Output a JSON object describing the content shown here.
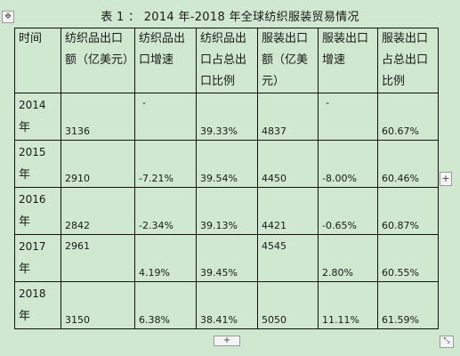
{
  "title": "表 1 ： 2014 年-2018 年全球纺织服装贸易情况",
  "headers": [
    "时间",
    "纺织品出口额（亿美元）",
    "纺织品出口增速",
    "纺织品出口占总出口比例",
    "服装出口额（亿美元）",
    "服装出口增速",
    "服装出口占总出口比例"
  ],
  "rows": [
    {
      "year": "2014",
      "year_suffix": "年",
      "tex_export": "3136",
      "tex_growth": "-",
      "tex_share": "39.33%",
      "app_export": "4837",
      "app_growth": "-",
      "app_share": "60.67%"
    },
    {
      "year": "2015",
      "year_suffix": "年",
      "tex_export": "2910",
      "tex_growth": "-7.21%",
      "tex_share": "39.54%",
      "app_export": "4450",
      "app_growth": "-8.00%",
      "app_share": "60.46%"
    },
    {
      "year": "2016",
      "year_suffix": "年",
      "tex_export": "2842",
      "tex_growth": "-2.34%",
      "tex_share": "39.13%",
      "app_export": "4421",
      "app_growth": "-0.65%",
      "app_share": "60.87%"
    },
    {
      "year": "2017",
      "year_suffix": "年",
      "tex_export": "2961",
      "tex_growth": "4.19%",
      "tex_share": "39.45%",
      "app_export": "4545",
      "app_growth": "2.80%",
      "app_share": "60.55%"
    },
    {
      "year": "2018",
      "year_suffix": "年",
      "tex_export": "3150",
      "tex_growth": "6.38%",
      "tex_share": "38.41%",
      "app_export": "5050",
      "app_growth": "11.11%",
      "app_share": "61.59%"
    }
  ],
  "controls": {
    "move_handle_icon": "move-icon",
    "add_column_symbol": "+",
    "add_row_symbol": "+",
    "resize_icon": "resize-icon"
  }
}
